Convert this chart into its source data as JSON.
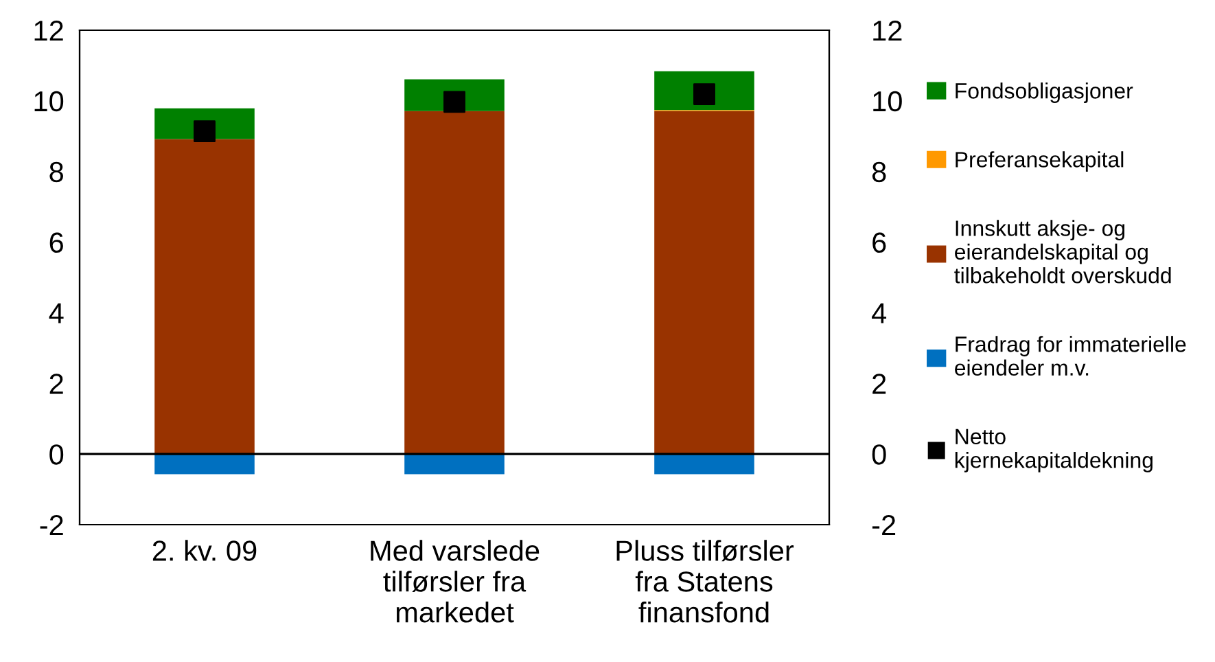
{
  "chart_data": {
    "type": "bar",
    "stacked": true,
    "categories": [
      "2. kv. 09",
      "Med varslede\ntilførsler fra\nmarkedet",
      "Pluss tilførsler\nfra Statens\nfinansfond"
    ],
    "series": [
      {
        "name": "Fradrag for immaterielle\neiendeler m.v.",
        "color": "#0070c0",
        "values": [
          -0.57,
          -0.57,
          -0.57
        ]
      },
      {
        "name": "Innskutt aksje- og\neierandelskapital og\ntilbakeholdt overskudd",
        "color": "#993300",
        "values": [
          8.92,
          9.71,
          9.71
        ]
      },
      {
        "name": "Preferansekapital",
        "color": "#ff9900",
        "values": [
          0,
          0,
          0.03
        ]
      },
      {
        "name": "Fondsobligasjoner",
        "color": "#008000",
        "values": [
          0.87,
          0.9,
          1.1
        ]
      },
      {
        "name": "Netto\nkjernekapitaldekning",
        "color": "#000000",
        "type": "scatter",
        "marker": "square",
        "values": [
          9.14,
          9.97,
          10.19
        ]
      }
    ],
    "ylim": [
      -2,
      12
    ],
    "yticks": [
      -2,
      0,
      2,
      4,
      6,
      8,
      10,
      12
    ],
    "y2lim": [
      -2,
      12
    ],
    "y2ticks": [
      -2,
      0,
      2,
      4,
      6,
      8,
      10,
      12
    ],
    "ref_lines": [
      {
        "axis": "y",
        "value": 0,
        "label": null,
        "color": "#000000"
      }
    ],
    "grid": false,
    "legend": "right"
  }
}
